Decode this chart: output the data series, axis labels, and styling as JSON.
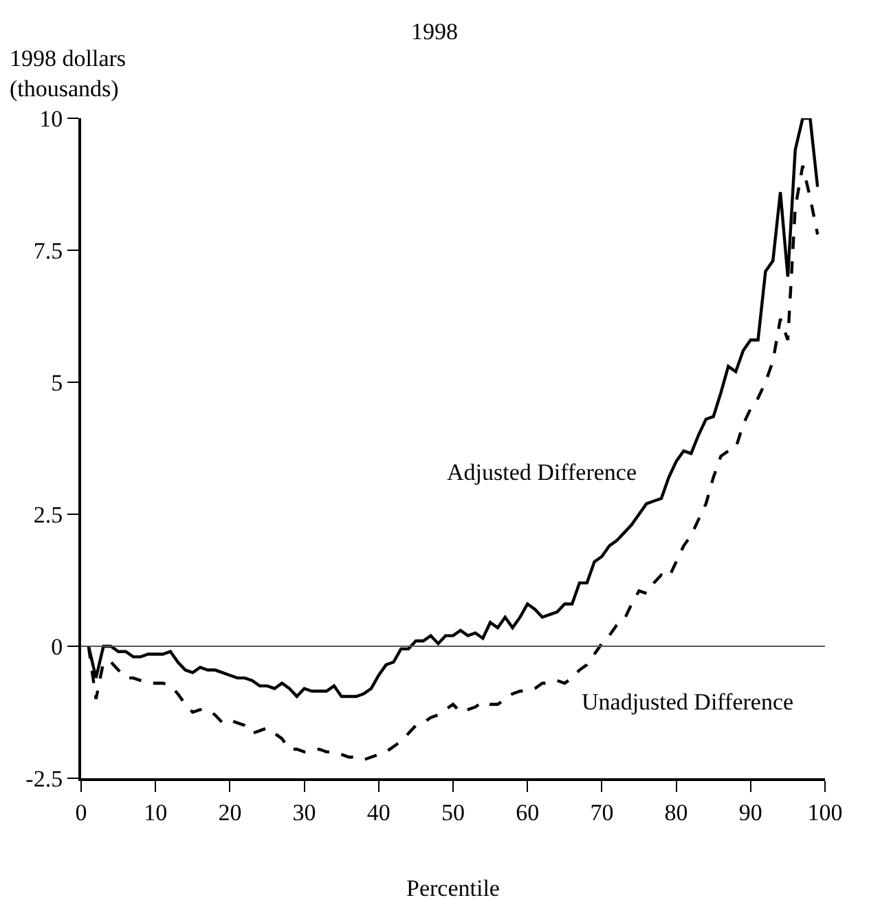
{
  "chart_data": {
    "type": "line",
    "title": "1998",
    "ylabel": "1998 dollars\n(thousands)",
    "xlabel": "Percentile",
    "x": [
      1,
      2,
      3,
      4,
      5,
      6,
      7,
      8,
      9,
      10,
      11,
      12,
      13,
      14,
      15,
      16,
      17,
      18,
      19,
      20,
      21,
      22,
      23,
      24,
      25,
      26,
      27,
      28,
      29,
      30,
      31,
      32,
      33,
      34,
      35,
      36,
      37,
      38,
      39,
      40,
      41,
      42,
      43,
      44,
      45,
      46,
      47,
      48,
      49,
      50,
      51,
      52,
      53,
      54,
      55,
      56,
      57,
      58,
      59,
      60,
      61,
      62,
      63,
      64,
      65,
      66,
      67,
      68,
      69,
      70,
      71,
      72,
      73,
      74,
      75,
      76,
      77,
      78,
      79,
      80,
      81,
      82,
      83,
      84,
      85,
      86,
      87,
      88,
      89,
      90,
      91,
      92,
      93,
      94,
      95,
      96,
      97,
      98,
      99
    ],
    "series": [
      {
        "name": "Adjusted Difference",
        "color": "#000000",
        "line_style": "solid",
        "values": [
          0,
          -0.6,
          0,
          0,
          -0.1,
          -0.1,
          -0.2,
          -0.2,
          -0.15,
          -0.15,
          -0.15,
          -0.1,
          -0.3,
          -0.45,
          -0.5,
          -0.4,
          -0.45,
          -0.45,
          -0.5,
          -0.55,
          -0.6,
          -0.6,
          -0.65,
          -0.75,
          -0.75,
          -0.8,
          -0.7,
          -0.8,
          -0.95,
          -0.8,
          -0.85,
          -0.85,
          -0.85,
          -0.75,
          -0.95,
          -0.95,
          -0.95,
          -0.9,
          -0.8,
          -0.55,
          -0.35,
          -0.3,
          -0.05,
          -0.05,
          0.1,
          0.1,
          0.2,
          0.05,
          0.2,
          0.2,
          0.3,
          0.2,
          0.25,
          0.15,
          0.45,
          0.35,
          0.55,
          0.35,
          0.55,
          0.8,
          0.7,
          0.55,
          0.6,
          0.65,
          0.8,
          0.8,
          1.2,
          1.2,
          1.6,
          1.7,
          1.9,
          2.0,
          2.15,
          2.3,
          2.5,
          2.7,
          2.75,
          2.8,
          3.2,
          3.5,
          3.7,
          3.65,
          4.0,
          4.3,
          4.35,
          4.8,
          5.3,
          5.2,
          5.6,
          5.8,
          5.8,
          7.1,
          7.3,
          8.6,
          7.0,
          9.4,
          10,
          10,
          8.7
        ]
      },
      {
        "name": "Unadjusted Difference",
        "color": "#000000",
        "line_style": "dashed",
        "values": [
          0,
          -1.0,
          -0.3,
          -0.3,
          -0.45,
          -0.6,
          -0.6,
          -0.65,
          -0.7,
          -0.7,
          -0.7,
          -0.75,
          -0.9,
          -1.1,
          -1.25,
          -1.2,
          -1.2,
          -1.3,
          -1.45,
          -1.4,
          -1.45,
          -1.5,
          -1.65,
          -1.6,
          -1.55,
          -1.65,
          -1.75,
          -1.95,
          -1.95,
          -2.0,
          -2.0,
          -1.95,
          -2.0,
          -2.0,
          -2.05,
          -2.1,
          -2.1,
          -2.15,
          -2.1,
          -2.05,
          -2.0,
          -1.9,
          -1.8,
          -1.65,
          -1.5,
          -1.45,
          -1.35,
          -1.3,
          -1.2,
          -1.1,
          -1.25,
          -1.2,
          -1.15,
          -1.05,
          -1.1,
          -1.1,
          -1.0,
          -0.9,
          -0.85,
          -0.85,
          -0.8,
          -0.7,
          -0.7,
          -0.65,
          -0.7,
          -0.6,
          -0.45,
          -0.35,
          -0.15,
          0.05,
          0.2,
          0.4,
          0.5,
          0.8,
          1.05,
          1.0,
          1.2,
          1.35,
          1.3,
          1.6,
          1.9,
          2.1,
          2.4,
          2.7,
          3.2,
          3.6,
          3.7,
          3.75,
          4.2,
          4.5,
          4.7,
          5.0,
          5.4,
          6.2,
          5.8,
          8.3,
          9.1,
          8.5,
          7.8
        ]
      }
    ],
    "xlim": [
      0,
      100
    ],
    "xticks": [
      0,
      10,
      20,
      30,
      40,
      50,
      60,
      70,
      80,
      90,
      100
    ],
    "ylim": [
      -2.5,
      10
    ],
    "yticks": [
      -2.5,
      0,
      2.5,
      5,
      7.5,
      10
    ],
    "ref_lines": [
      {
        "axis": "y",
        "value": 0,
        "color": "#555555"
      }
    ]
  }
}
